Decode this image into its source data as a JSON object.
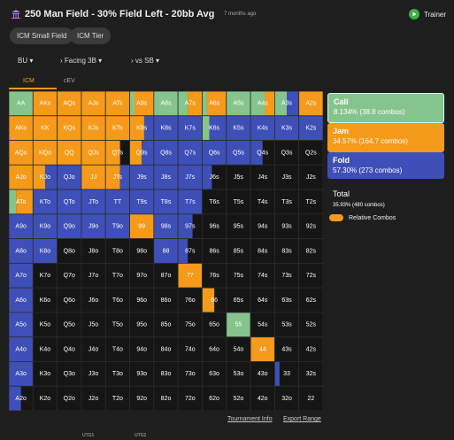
{
  "header": {
    "title": "250 Man Field - 30% Field Left - 20bb Avg",
    "time": "7 months ago",
    "trainer": "Trainer"
  },
  "buttons": [
    "ICM Small Field",
    "ICM Tier"
  ],
  "nav": [
    "BU",
    "Facing 3B",
    "vs SB"
  ],
  "tabs": [
    "ICM",
    "cEV"
  ],
  "legend": [
    {
      "name": "Call",
      "detail": "8.134% (38.8 combos)"
    },
    {
      "name": "Jam",
      "detail": "34.57% (164.7 combos)"
    },
    {
      "name": "Fold",
      "detail": "57.30% (273 combos)"
    }
  ],
  "total": {
    "name": "Total",
    "detail": "35.93% (480 combos)"
  },
  "toggle": "Relative Combos",
  "links": [
    "Tournament Info",
    "Export Range"
  ],
  "footer": [
    "UTG1",
    "UTG2"
  ],
  "grid": {
    "rows": [
      [
        [
          "AA",
          100,
          0,
          0
        ],
        [
          "AKs",
          0,
          100,
          0
        ],
        [
          "AQs",
          0,
          100,
          0
        ],
        [
          "AJs",
          0,
          100,
          0
        ],
        [
          "ATs",
          0,
          100,
          0
        ],
        [
          "A9s",
          20,
          80,
          0
        ],
        [
          "A8s",
          100,
          0,
          0
        ],
        [
          "A7s",
          40,
          60,
          0
        ],
        [
          "A6s",
          20,
          80,
          0
        ],
        [
          "A5s",
          100,
          0,
          0
        ],
        [
          "A4s",
          60,
          40,
          0
        ],
        [
          "A3s",
          50,
          0,
          50
        ],
        [
          "A2s",
          0,
          100,
          0
        ]
      ],
      [
        [
          "AKo",
          0,
          100,
          0
        ],
        [
          "KK",
          0,
          100,
          0
        ],
        [
          "KQs",
          0,
          100,
          0
        ],
        [
          "KJs",
          0,
          100,
          0
        ],
        [
          "KTs",
          0,
          100,
          0
        ],
        [
          "K9s",
          0,
          60,
          40
        ],
        [
          "K8s",
          0,
          0,
          100
        ],
        [
          "K7s",
          0,
          0,
          100
        ],
        [
          "K6s",
          30,
          0,
          70
        ],
        [
          "K5s",
          0,
          0,
          100
        ],
        [
          "K4s",
          0,
          0,
          100
        ],
        [
          "K3s",
          0,
          0,
          100
        ],
        [
          "K2s",
          0,
          0,
          100
        ]
      ],
      [
        [
          "AQo",
          0,
          100,
          0
        ],
        [
          "KQo",
          0,
          100,
          0
        ],
        [
          "QQ",
          0,
          100,
          0
        ],
        [
          "QJs",
          0,
          100,
          0
        ],
        [
          "QTs",
          0,
          60,
          0
        ],
        [
          "Q9s",
          0,
          50,
          50
        ],
        [
          "Q8s",
          0,
          0,
          100
        ],
        [
          "Q7s",
          0,
          0,
          100
        ],
        [
          "Q6s",
          0,
          0,
          100
        ],
        [
          "Q5s",
          0,
          0,
          100
        ],
        [
          "Q4s",
          0,
          0,
          50
        ],
        [
          "Q3s",
          0,
          0,
          0
        ],
        [
          "Q2s",
          0,
          0,
          0
        ]
      ],
      [
        [
          "AJo",
          0,
          100,
          0
        ],
        [
          "KJo",
          0,
          50,
          50
        ],
        [
          "QJo",
          0,
          0,
          100
        ],
        [
          "JJ",
          0,
          100,
          0
        ],
        [
          "JTs",
          0,
          60,
          40
        ],
        [
          "J9s",
          0,
          0,
          100
        ],
        [
          "J8s",
          0,
          0,
          100
        ],
        [
          "J7s",
          0,
          0,
          100
        ],
        [
          "J6s",
          0,
          0,
          40
        ],
        [
          "J5s",
          0,
          0,
          0
        ],
        [
          "J4s",
          0,
          0,
          0
        ],
        [
          "J3s",
          0,
          0,
          0
        ],
        [
          "J2s",
          0,
          0,
          0
        ]
      ],
      [
        [
          "ATo",
          30,
          70,
          0
        ],
        [
          "KTo",
          0,
          0,
          100
        ],
        [
          "QTo",
          0,
          0,
          100
        ],
        [
          "JTo",
          0,
          0,
          100
        ],
        [
          "TT",
          0,
          0,
          100
        ],
        [
          "T9s",
          0,
          0,
          100
        ],
        [
          "T8s",
          0,
          0,
          100
        ],
        [
          "T7s",
          0,
          0,
          100
        ],
        [
          "T6s",
          0,
          0,
          0
        ],
        [
          "T5s",
          0,
          0,
          0
        ],
        [
          "T4s",
          0,
          0,
          0
        ],
        [
          "T3s",
          0,
          0,
          0
        ],
        [
          "T2s",
          0,
          0,
          0
        ]
      ],
      [
        [
          "A9o",
          0,
          0,
          100
        ],
        [
          "K9o",
          0,
          0,
          100
        ],
        [
          "Q9o",
          0,
          0,
          100
        ],
        [
          "J9o",
          0,
          0,
          100
        ],
        [
          "T9o",
          0,
          0,
          100
        ],
        [
          "99",
          0,
          100,
          0
        ],
        [
          "98s",
          0,
          0,
          100
        ],
        [
          "97s",
          0,
          0,
          60
        ],
        [
          "96s",
          0,
          0,
          0
        ],
        [
          "95s",
          0,
          0,
          0
        ],
        [
          "94s",
          0,
          0,
          0
        ],
        [
          "93s",
          0,
          0,
          0
        ],
        [
          "92s",
          0,
          0,
          0
        ]
      ],
      [
        [
          "A8o",
          0,
          0,
          100
        ],
        [
          "K8o",
          0,
          0,
          100
        ],
        [
          "Q8o",
          0,
          0,
          0
        ],
        [
          "J8o",
          0,
          0,
          0
        ],
        [
          "T8o",
          0,
          0,
          0
        ],
        [
          "98o",
          0,
          0,
          0
        ],
        [
          "88",
          0,
          0,
          100
        ],
        [
          "87s",
          0,
          0,
          40
        ],
        [
          "86s",
          0,
          0,
          0
        ],
        [
          "85s",
          0,
          0,
          0
        ],
        [
          "84s",
          0,
          0,
          0
        ],
        [
          "83s",
          0,
          0,
          0
        ],
        [
          "82s",
          0,
          0,
          0
        ]
      ],
      [
        [
          "A7o",
          0,
          0,
          100
        ],
        [
          "K7o",
          0,
          0,
          0
        ],
        [
          "Q7o",
          0,
          0,
          0
        ],
        [
          "J7o",
          0,
          0,
          0
        ],
        [
          "T7o",
          0,
          0,
          0
        ],
        [
          "97o",
          0,
          0,
          0
        ],
        [
          "87o",
          0,
          0,
          0
        ],
        [
          "77",
          0,
          100,
          0
        ],
        [
          "76s",
          0,
          0,
          0
        ],
        [
          "75s",
          0,
          0,
          0
        ],
        [
          "74s",
          0,
          0,
          0
        ],
        [
          "73s",
          0,
          0,
          0
        ],
        [
          "72s",
          0,
          0,
          0
        ]
      ],
      [
        [
          "A6o",
          0,
          0,
          100
        ],
        [
          "K6o",
          0,
          0,
          0
        ],
        [
          "Q6o",
          0,
          0,
          0
        ],
        [
          "J6o",
          0,
          0,
          0
        ],
        [
          "T6o",
          0,
          0,
          0
        ],
        [
          "96o",
          0,
          0,
          0
        ],
        [
          "86o",
          0,
          0,
          0
        ],
        [
          "76o",
          0,
          0,
          0
        ],
        [
          "66",
          0,
          50,
          0
        ],
        [
          "65s",
          0,
          0,
          0
        ],
        [
          "64s",
          0,
          0,
          0
        ],
        [
          "63s",
          0,
          0,
          0
        ],
        [
          "62s",
          0,
          0,
          0
        ]
      ],
      [
        [
          "A5o",
          0,
          0,
          100
        ],
        [
          "K5o",
          0,
          0,
          0
        ],
        [
          "Q5o",
          0,
          0,
          0
        ],
        [
          "J5o",
          0,
          0,
          0
        ],
        [
          "T5o",
          0,
          0,
          0
        ],
        [
          "95o",
          0,
          0,
          0
        ],
        [
          "85o",
          0,
          0,
          0
        ],
        [
          "75o",
          0,
          0,
          0
        ],
        [
          "65o",
          0,
          0,
          0
        ],
        [
          "55",
          100,
          0,
          0
        ],
        [
          "54s",
          0,
          0,
          0
        ],
        [
          "53s",
          0,
          0,
          0
        ],
        [
          "52s",
          0,
          0,
          0
        ]
      ],
      [
        [
          "A4o",
          0,
          0,
          100
        ],
        [
          "K4o",
          0,
          0,
          0
        ],
        [
          "Q4o",
          0,
          0,
          0
        ],
        [
          "J4o",
          0,
          0,
          0
        ],
        [
          "T4o",
          0,
          0,
          0
        ],
        [
          "94o",
          0,
          0,
          0
        ],
        [
          "84o",
          0,
          0,
          0
        ],
        [
          "74o",
          0,
          0,
          0
        ],
        [
          "64o",
          0,
          0,
          0
        ],
        [
          "54o",
          0,
          0,
          0
        ],
        [
          "44",
          0,
          100,
          0
        ],
        [
          "43s",
          0,
          0,
          0
        ],
        [
          "42s",
          0,
          0,
          0
        ]
      ],
      [
        [
          "A3o",
          0,
          0,
          100
        ],
        [
          "K3o",
          0,
          0,
          0
        ],
        [
          "Q3o",
          0,
          0,
          0
        ],
        [
          "J3o",
          0,
          0,
          0
        ],
        [
          "T3o",
          0,
          0,
          0
        ],
        [
          "93o",
          0,
          0,
          0
        ],
        [
          "83o",
          0,
          0,
          0
        ],
        [
          "73o",
          0,
          0,
          0
        ],
        [
          "63o",
          0,
          0,
          0
        ],
        [
          "53o",
          0,
          0,
          0
        ],
        [
          "43o",
          0,
          0,
          0
        ],
        [
          "33",
          0,
          0,
          20
        ],
        [
          "32s",
          0,
          0,
          0
        ]
      ],
      [
        [
          "A2o",
          0,
          0,
          50
        ],
        [
          "K2o",
          0,
          0,
          0
        ],
        [
          "Q2o",
          0,
          0,
          0
        ],
        [
          "J2o",
          0,
          0,
          0
        ],
        [
          "T2o",
          0,
          0,
          0
        ],
        [
          "92o",
          0,
          0,
          0
        ],
        [
          "82o",
          0,
          0,
          0
        ],
        [
          "72o",
          0,
          0,
          0
        ],
        [
          "62o",
          0,
          0,
          0
        ],
        [
          "52o",
          0,
          0,
          0
        ],
        [
          "42o",
          0,
          0,
          0
        ],
        [
          "32o",
          0,
          0,
          0
        ],
        [
          "22",
          0,
          0,
          0
        ]
      ]
    ]
  }
}
